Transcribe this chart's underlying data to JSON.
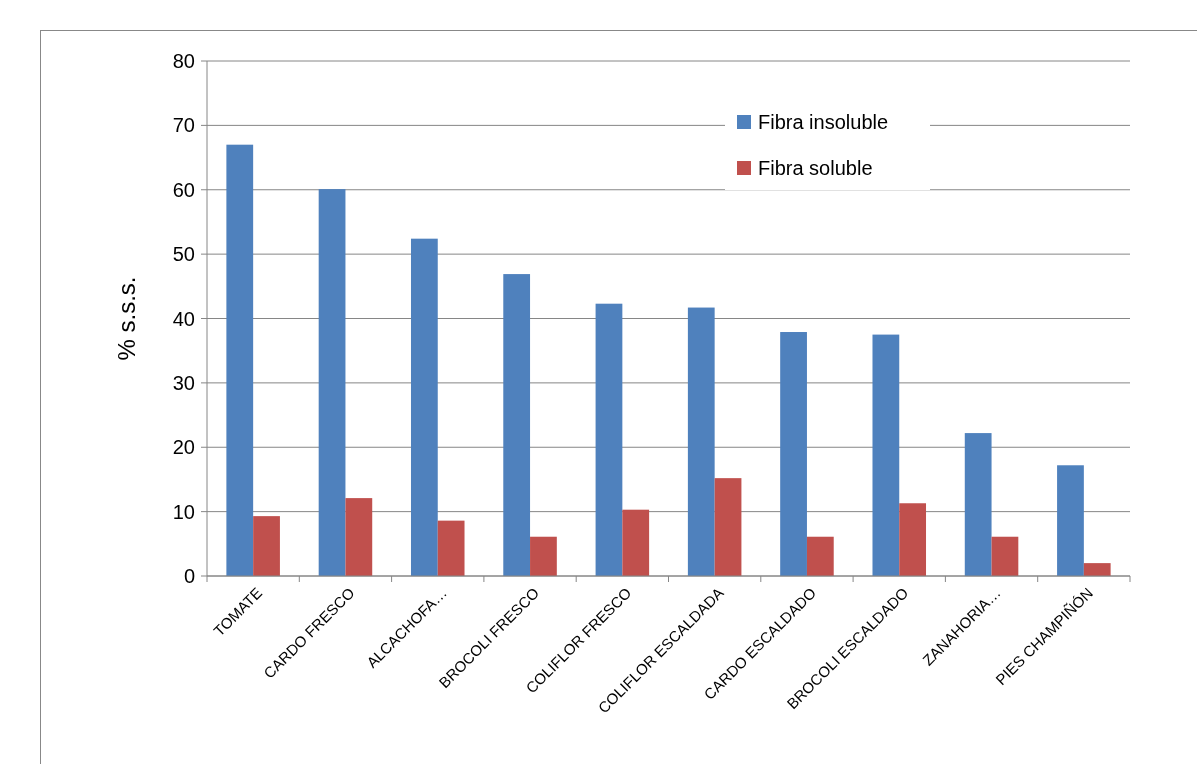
{
  "chart_data": {
    "type": "bar",
    "ylabel": "% s.s.s.",
    "categories": [
      "TOMATE",
      "CARDO FRESCO",
      "ALCACHOFA…",
      "BROCOLI FRESCO",
      "COLIFLOR FRESCO",
      "COLIFLOR ESCALDADA",
      "CARDO ESCALDADO",
      "BROCOLI ESCALDADO",
      "ZANAHORIA…",
      "PIES CHAMPIÑÓN"
    ],
    "series": [
      {
        "name": "Fibra insoluble",
        "color": "#4f81bd",
        "values": [
          67,
          60.1,
          52.4,
          46.9,
          42.3,
          41.7,
          37.9,
          37.5,
          22.2,
          17.2
        ]
      },
      {
        "name": "Fibra soluble",
        "color": "#c0504d",
        "values": [
          9.3,
          12.1,
          8.6,
          6.1,
          10.3,
          15.2,
          6.1,
          11.3,
          6.1,
          2
        ]
      }
    ],
    "ylim": [
      0,
      80
    ],
    "yticks": [
      0,
      10,
      20,
      30,
      40,
      50,
      60,
      70,
      80
    ],
    "grid": "y",
    "legend": "top right"
  }
}
